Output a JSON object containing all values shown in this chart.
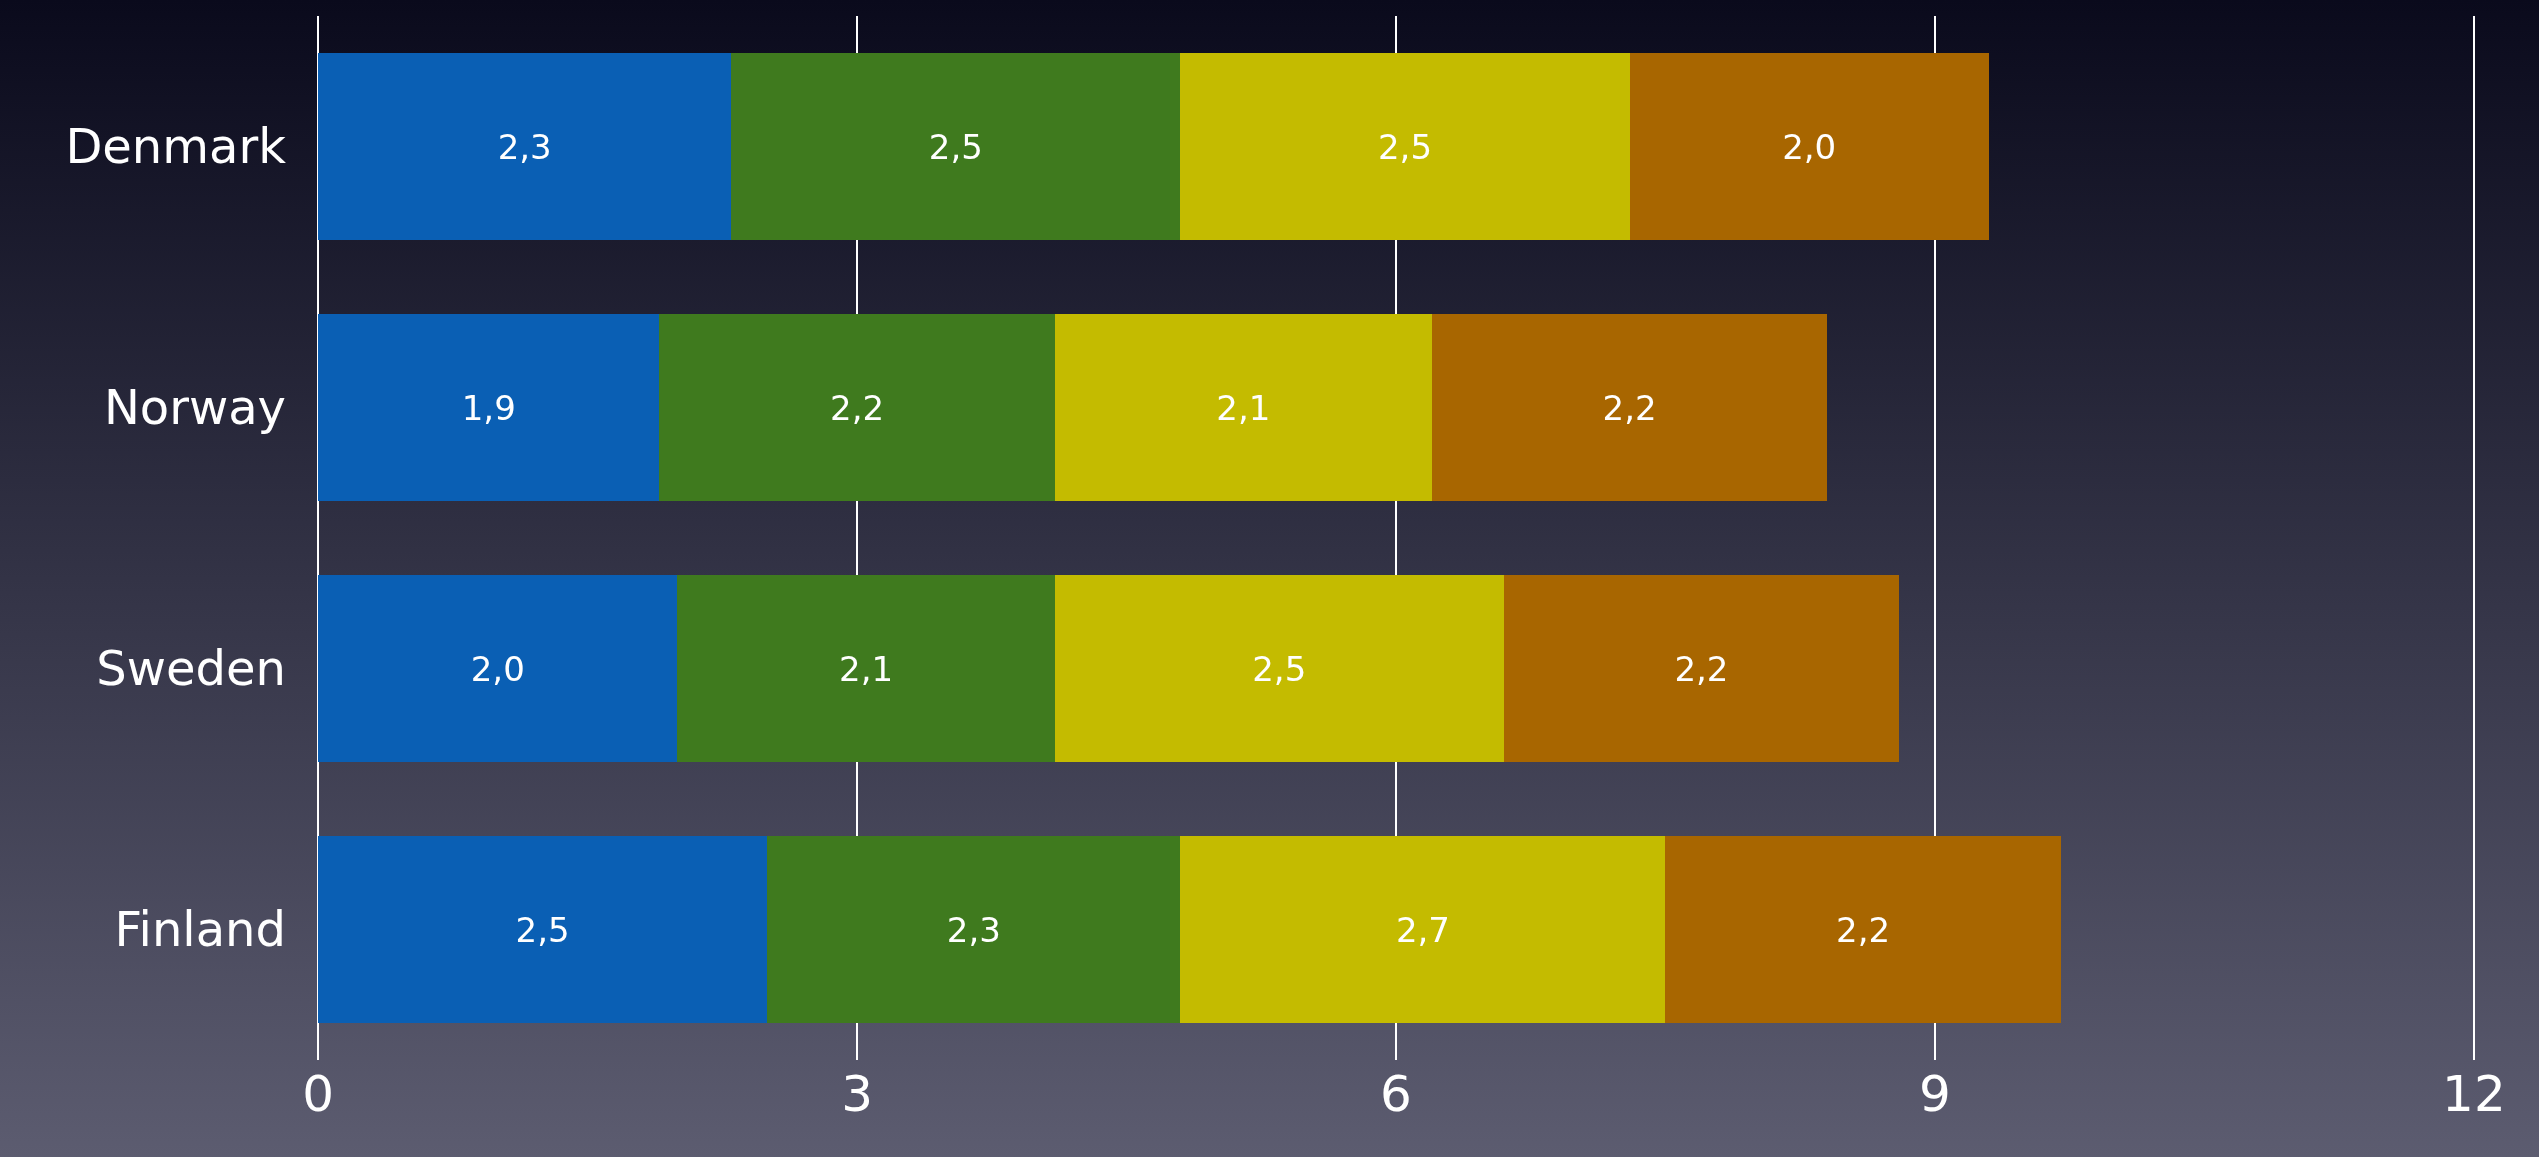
{
  "chart_data": {
    "type": "bar",
    "orientation": "horizontal",
    "stacked": true,
    "categories": [
      "Denmark",
      "Norway",
      "Sweden",
      "Finland"
    ],
    "series": [
      {
        "color": "#0a5fb4",
        "values": [
          2.3,
          1.9,
          2.0,
          2.5
        ],
        "value_labels": [
          "2,3",
          "1,9",
          "2,0",
          "2,5"
        ]
      },
      {
        "color": "#3f7a1e",
        "values": [
          2.5,
          2.2,
          2.1,
          2.3
        ],
        "value_labels": [
          "2,5",
          "2,2",
          "2,1",
          "2,3"
        ]
      },
      {
        "color": "#c4bb00",
        "values": [
          2.5,
          2.1,
          2.5,
          2.7
        ],
        "value_labels": [
          "2,5",
          "2,1",
          "2,5",
          "2,7"
        ]
      },
      {
        "color": "#a86600",
        "values": [
          2.0,
          2.2,
          2.2,
          2.2
        ],
        "value_labels": [
          "2,0",
          "2,2",
          "2,2",
          "2,2"
        ]
      }
    ],
    "xlim": [
      0,
      12
    ],
    "xticks": [
      0,
      3,
      6,
      9,
      12
    ],
    "grid": "x"
  }
}
